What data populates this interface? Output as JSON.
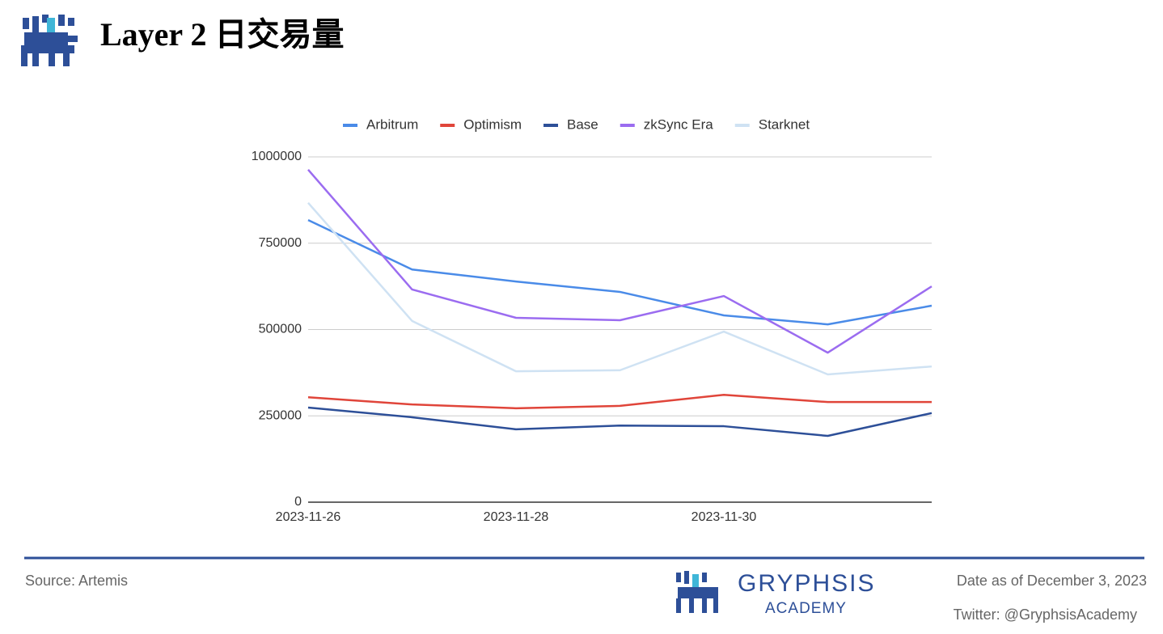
{
  "chart_data": {
    "type": "line",
    "title": "Layer 2 日交易量",
    "categories": [
      "2023-11-26",
      null,
      "2023-11-28",
      null,
      "2023-11-30",
      null,
      null
    ],
    "series": [
      {
        "name": "Arbitrum",
        "color": "#4a8be8",
        "values": [
          817000,
          674000,
          639000,
          609000,
          541000,
          515000,
          569000
        ]
      },
      {
        "name": "Optimism",
        "color": "#e0453a",
        "values": [
          304000,
          283000,
          272000,
          279000,
          311000,
          290000,
          290000
        ]
      },
      {
        "name": "Base",
        "color": "#2d4f98",
        "values": [
          274000,
          246000,
          211000,
          222000,
          220000,
          192000,
          258000
        ]
      },
      {
        "name": "zkSync Era",
        "color": "#9b6cf0",
        "values": [
          963000,
          616000,
          534000,
          527000,
          597000,
          433000,
          625000
        ]
      },
      {
        "name": "Starknet",
        "color": "#cfe2f3",
        "values": [
          867000,
          525000,
          379000,
          382000,
          494000,
          370000,
          393000
        ]
      }
    ],
    "ylim": [
      0,
      1000000
    ],
    "yticks": [
      0,
      250000,
      500000,
      750000,
      1000000
    ],
    "grid": true,
    "legend": "top"
  },
  "footer": {
    "source": "Source: Artemis",
    "brand": "GRYPHSIS",
    "brand_sub": "ACADEMY",
    "date": "Date as of December 3, 2023",
    "twitter": "Twitter: @GryphsisAcademy"
  }
}
